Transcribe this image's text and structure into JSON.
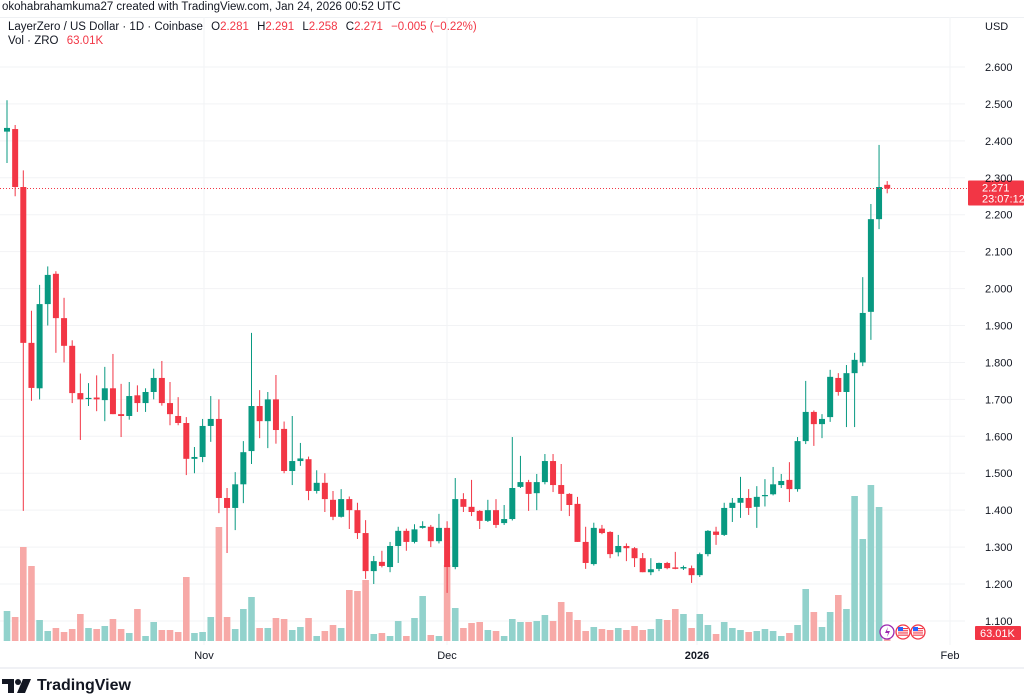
{
  "credit": "okohabrahamkuma27 created with TradingView.com, Jan 24, 2026 00:52 UTC",
  "legend": {
    "symbol": "LayerZero / US Dollar · 1D · Coinbase",
    "o_label": "O",
    "o": "2.281",
    "h_label": "H",
    "h": "2.291",
    "l_label": "L",
    "l": "2.258",
    "c_label": "C",
    "c": "2.271",
    "change": "−0.005 (−0.22%)",
    "vol_label": "Vol · ZRO",
    "vol": "63.01K"
  },
  "currency": "USD",
  "last_price_label": "2.271",
  "countdown": "23:07:12",
  "volume_label": "63.01K",
  "brand": "TradingView",
  "event_icons": [
    "lightning-icon",
    "us-flag-icon",
    "us-flag-icon"
  ],
  "colors": {
    "up": "#089981",
    "down": "#f23645",
    "vol_up": "#92d2cc",
    "vol_down": "#f7a9a7",
    "label_bg": "#f23645"
  },
  "chart_data": {
    "type": "candlestick",
    "title": "LayerZero / US Dollar · 1D · Coinbase",
    "interval": "1D",
    "xlabel": "",
    "ylabel": "USD",
    "ylim": [
      1.05,
      2.65
    ],
    "y_ticks": [
      "2.600",
      "2.500",
      "2.400",
      "2.300",
      "2.200",
      "2.100",
      "2.000",
      "1.900",
      "1.800",
      "1.700",
      "1.600",
      "1.500",
      "1.400",
      "1.300",
      "1.200",
      "1.100"
    ],
    "x_ticks": [
      {
        "label": "Nov",
        "bold": false
      },
      {
        "label": "Dec",
        "bold": false
      },
      {
        "label": "2026",
        "bold": true
      },
      {
        "label": "Feb",
        "bold": false
      }
    ],
    "grid": true,
    "last_price": 2.271,
    "volume_unit": "K",
    "columns": [
      "open",
      "high",
      "low",
      "close",
      "volume"
    ],
    "candles": [
      [
        2.425,
        2.51,
        2.34,
        2.435,
        240
      ],
      [
        2.432,
        2.443,
        2.25,
        2.275,
        192
      ],
      [
        2.275,
        2.32,
        1.398,
        1.853,
        752
      ],
      [
        1.853,
        1.94,
        1.696,
        1.731,
        600
      ],
      [
        1.73,
        2.01,
        1.7,
        1.958,
        168
      ],
      [
        1.958,
        2.06,
        1.9,
        2.037,
        80
      ],
      [
        2.04,
        2.047,
        1.826,
        1.92,
        104
      ],
      [
        1.92,
        1.975,
        1.8,
        1.845,
        72
      ],
      [
        1.845,
        1.86,
        1.69,
        1.717,
        96
      ],
      [
        1.717,
        1.77,
        1.59,
        1.7,
        216
      ],
      [
        1.702,
        1.744,
        1.682,
        1.704,
        104
      ],
      [
        1.705,
        1.765,
        1.668,
        1.7,
        96
      ],
      [
        1.698,
        1.788,
        1.641,
        1.73,
        120
      ],
      [
        1.73,
        1.823,
        1.66,
        1.66,
        176
      ],
      [
        1.66,
        1.742,
        1.598,
        1.655,
        96
      ],
      [
        1.655,
        1.747,
        1.645,
        1.709,
        64
      ],
      [
        1.711,
        1.738,
        1.666,
        1.69,
        256
      ],
      [
        1.69,
        1.73,
        1.666,
        1.72,
        40
      ],
      [
        1.72,
        1.783,
        1.7,
        1.758,
        152
      ],
      [
        1.758,
        1.804,
        1.683,
        1.69,
        88
      ],
      [
        1.69,
        1.747,
        1.63,
        1.66,
        88
      ],
      [
        1.655,
        1.706,
        1.63,
        1.636,
        72
      ],
      [
        1.636,
        1.652,
        1.495,
        1.539,
        512
      ],
      [
        1.539,
        1.571,
        1.5,
        1.544,
        64
      ],
      [
        1.544,
        1.647,
        1.53,
        1.628,
        72
      ],
      [
        1.628,
        1.709,
        1.585,
        1.647,
        192
      ],
      [
        1.647,
        1.7,
        1.392,
        1.433,
        912
      ],
      [
        1.433,
        1.46,
        1.284,
        1.406,
        192
      ],
      [
        1.406,
        1.503,
        1.346,
        1.47,
        96
      ],
      [
        1.47,
        1.587,
        1.419,
        1.557,
        256
      ],
      [
        1.56,
        1.88,
        1.525,
        1.682,
        352
      ],
      [
        1.682,
        1.725,
        1.595,
        1.641,
        104
      ],
      [
        1.641,
        1.72,
        1.568,
        1.7,
        104
      ],
      [
        1.7,
        1.766,
        1.58,
        1.617,
        184
      ],
      [
        1.62,
        1.64,
        1.5,
        1.506,
        176
      ],
      [
        1.506,
        1.655,
        1.468,
        1.533,
        88
      ],
      [
        1.533,
        1.582,
        1.52,
        1.54,
        112
      ],
      [
        1.538,
        1.545,
        1.427,
        1.452,
        184
      ],
      [
        1.452,
        1.508,
        1.445,
        1.474,
        40
      ],
      [
        1.474,
        1.5,
        1.395,
        1.43,
        80
      ],
      [
        1.428,
        1.452,
        1.373,
        1.382,
        128
      ],
      [
        1.382,
        1.457,
        1.38,
        1.43,
        104
      ],
      [
        1.43,
        1.437,
        1.349,
        1.4,
        408
      ],
      [
        1.4,
        1.42,
        1.322,
        1.338,
        400
      ],
      [
        1.338,
        1.373,
        1.214,
        1.235,
        488
      ],
      [
        1.235,
        1.276,
        1.2,
        1.262,
        56
      ],
      [
        1.26,
        1.29,
        1.245,
        1.249,
        64
      ],
      [
        1.246,
        1.314,
        1.232,
        1.303,
        40
      ],
      [
        1.303,
        1.355,
        1.257,
        1.344,
        160
      ],
      [
        1.344,
        1.35,
        1.29,
        1.314,
        40
      ],
      [
        1.314,
        1.362,
        1.31,
        1.348,
        184
      ],
      [
        1.352,
        1.37,
        1.35,
        1.357,
        360
      ],
      [
        1.355,
        1.36,
        1.3,
        1.316,
        48
      ],
      [
        1.316,
        1.39,
        1.31,
        1.352,
        40
      ],
      [
        1.352,
        1.37,
        1.176,
        1.246,
        608
      ],
      [
        1.246,
        1.487,
        1.24,
        1.43,
        264
      ],
      [
        1.43,
        1.446,
        1.395,
        1.409,
        104
      ],
      [
        1.409,
        1.482,
        1.384,
        1.395,
        144
      ],
      [
        1.398,
        1.4,
        1.349,
        1.371,
        152
      ],
      [
        1.371,
        1.428,
        1.368,
        1.4,
        88
      ],
      [
        1.4,
        1.43,
        1.352,
        1.36,
        80
      ],
      [
        1.365,
        1.414,
        1.36,
        1.376,
        40
      ],
      [
        1.376,
        1.598,
        1.372,
        1.46,
        176
      ],
      [
        1.463,
        1.547,
        1.46,
        1.476,
        152
      ],
      [
        1.476,
        1.482,
        1.398,
        1.444,
        152
      ],
      [
        1.446,
        1.498,
        1.4,
        1.476,
        160
      ],
      [
        1.476,
        1.552,
        1.47,
        1.533,
        208
      ],
      [
        1.533,
        1.552,
        1.449,
        1.468,
        160
      ],
      [
        1.468,
        1.525,
        1.398,
        1.444,
        312
      ],
      [
        1.444,
        1.446,
        1.384,
        1.414,
        232
      ],
      [
        1.417,
        1.436,
        1.314,
        1.314,
        168
      ],
      [
        1.314,
        1.355,
        1.241,
        1.257,
        80
      ],
      [
        1.254,
        1.366,
        1.25,
        1.352,
        112
      ],
      [
        1.35,
        1.36,
        1.335,
        1.338,
        96
      ],
      [
        1.341,
        1.343,
        1.27,
        1.281,
        88
      ],
      [
        1.286,
        1.333,
        1.275,
        1.303,
        104
      ],
      [
        1.303,
        1.31,
        1.262,
        1.297,
        88
      ],
      [
        1.297,
        1.3,
        1.246,
        1.27,
        120
      ],
      [
        1.27,
        1.284,
        1.232,
        1.232,
        88
      ],
      [
        1.232,
        1.27,
        1.224,
        1.24,
        96
      ],
      [
        1.241,
        1.258,
        1.235,
        1.257,
        176
      ],
      [
        1.257,
        1.26,
        1.24,
        1.243,
        168
      ],
      [
        1.245,
        1.287,
        1.24,
        1.241,
        256
      ],
      [
        1.242,
        1.25,
        1.238,
        1.246,
        216
      ],
      [
        1.243,
        1.25,
        1.203,
        1.224,
        104
      ],
      [
        1.224,
        1.285,
        1.219,
        1.281,
        216
      ],
      [
        1.281,
        1.346,
        1.275,
        1.344,
        128
      ],
      [
        1.342,
        1.355,
        1.306,
        1.333,
        56
      ],
      [
        1.333,
        1.42,
        1.33,
        1.406,
        152
      ],
      [
        1.406,
        1.433,
        1.368,
        1.42,
        104
      ],
      [
        1.42,
        1.49,
        1.379,
        1.433,
        88
      ],
      [
        1.433,
        1.457,
        1.387,
        1.406,
        72
      ],
      [
        1.409,
        1.465,
        1.352,
        1.436,
        80
      ],
      [
        1.438,
        1.484,
        1.41,
        1.441,
        96
      ],
      [
        1.443,
        1.517,
        1.44,
        1.47,
        80
      ],
      [
        1.468,
        1.498,
        1.46,
        1.479,
        40
      ],
      [
        1.482,
        1.53,
        1.422,
        1.457,
        64
      ],
      [
        1.457,
        1.598,
        1.45,
        1.587,
        128
      ],
      [
        1.587,
        1.75,
        1.579,
        1.666,
        416
      ],
      [
        1.666,
        1.67,
        1.574,
        1.633,
        232
      ],
      [
        1.633,
        1.66,
        1.595,
        1.647,
        112
      ],
      [
        1.652,
        1.78,
        1.639,
        1.761,
        232
      ],
      [
        1.758,
        1.771,
        1.71,
        1.72,
        368
      ],
      [
        1.72,
        1.793,
        1.625,
        1.771,
        256
      ],
      [
        1.771,
        1.826,
        1.625,
        1.807,
        1160
      ],
      [
        1.8,
        2.031,
        1.79,
        1.934,
        816
      ],
      [
        1.937,
        2.229,
        1.861,
        2.188,
        1248
      ],
      [
        2.188,
        2.389,
        2.161,
        2.275,
        1072
      ],
      [
        2.281,
        2.291,
        2.258,
        2.271,
        63.01
      ]
    ]
  }
}
